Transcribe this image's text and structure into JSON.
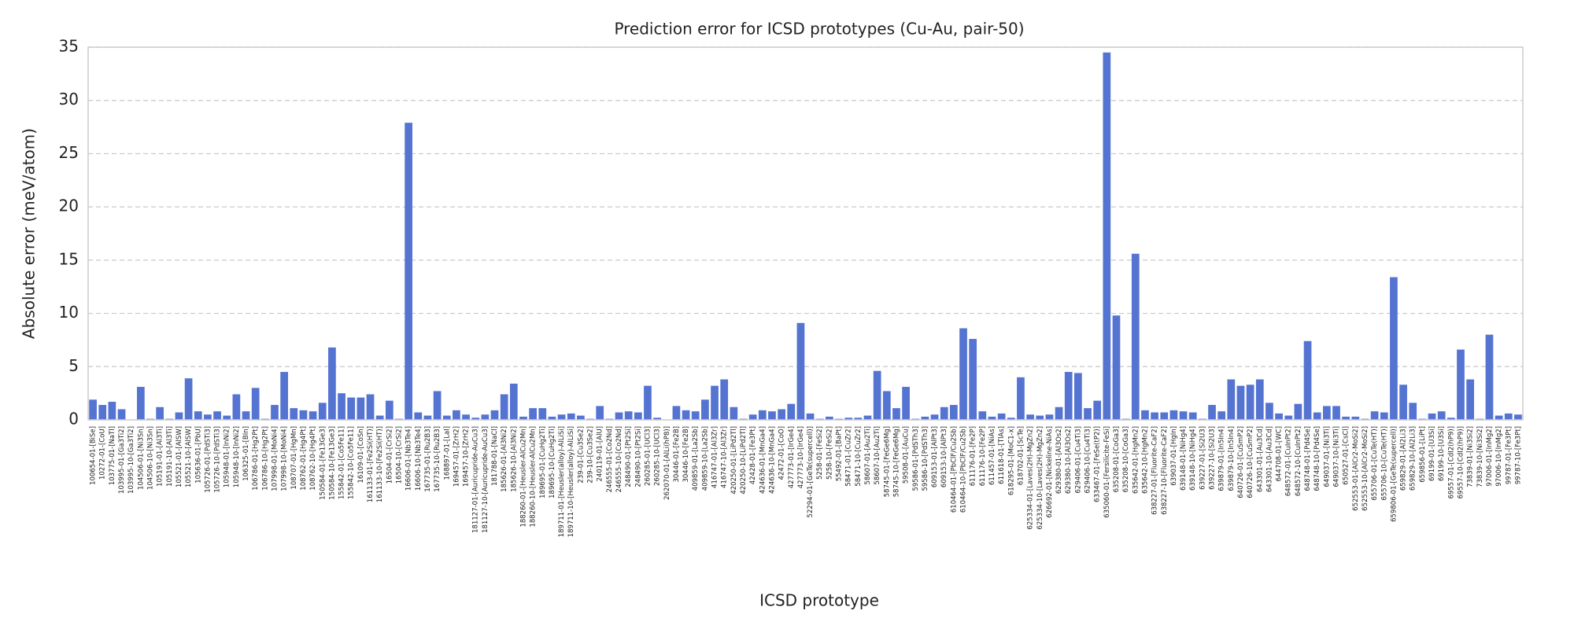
{
  "chart_data": {
    "type": "bar",
    "title": "Prediction error for ICSD prototypes (Cu-Au, pair-50)",
    "x_label": "ICSD prototype",
    "y_label": "Absolute error (meV/atom)",
    "color": "#5574d2",
    "grid": true,
    "ylim": [
      0,
      35
    ],
    "yticks": [
      0,
      5,
      10,
      15,
      20,
      25,
      30,
      35
    ],
    "categories": [
      "100654-01-[BiSe]",
      "10272-01-[CoU]",
      "103775-01-[NaTl]",
      "103995-01-[Ga3Ti2]",
      "103995-10-[Ga3Ti2]",
      "104506-01-[Ni3Sn]",
      "104506-10-[Ni3Sn]",
      "105191-01-[Al3Ti]",
      "105191-10-[Al3Ti]",
      "105521-01-[AlSW]",
      "105521-10-[AlSW]",
      "105636-01-[PbU]",
      "105726-01-[PdSTi3]",
      "105726-10-[PdSTi3]",
      "105948-01-[InNi2]",
      "105948-10-[InNi2]",
      "106325-01-[BIn]",
      "106786-01-[Hg2Pt]",
      "106786-10-[Hg2Pt]",
      "107998-01-[MoNi4]",
      "107998-10-[MoNi4]",
      "108707-01-[HgMn]",
      "108762-01-[Hg4Pt]",
      "108762-10-[Hg4Pt]",
      "150584-01-[Fe13Ge3]",
      "150584-10-[Fe13Ge3]",
      "155842-01-[Co5Fe11]",
      "155842-10-[Co5Fe11]",
      "16109-01-[CoSn]",
      "161133-01-[Fe2Si(HT)]",
      "161133-10-[Fe2Si(HT)]",
      "16504-01-[CrSi2]",
      "16504-10-[CrSi2]",
      "16606-01-[Nb3Te4]",
      "16606-10-[Nb3Te4]",
      "167735-01-[Ru2B3]",
      "167735-10-[Ru2B3]",
      "168897-01-[LaI]",
      "169457-01-[ZrH2]",
      "169457-10-[ZrH2]",
      "181127-01-[Auricupride-AuCu3]",
      "181127-10-[Auricupride-AuCu3]",
      "181788-01-[NaCl]",
      "185626-01-[Al3Ni2]",
      "185626-10-[Al3Ni2]",
      "188260-01-[Heusler-AlCu2Mn]",
      "188260-10-[Heusler-AlCu2Mn]",
      "189695-01-[CuHg2Ti]",
      "189695-10-[CuHg2Ti]",
      "189711-01-[Heusler(alloy)-AlLiSi]",
      "189711-10-[Heusler(alloy)-AlLiSi]",
      "239-01-[Cu3Se2]",
      "239-10-[Cu3Se2]",
      "240119-01-[AlU]",
      "246555-01-[Co2Nd]",
      "246555-10-[Co2Nd]",
      "248490-01-[Pt2Si]",
      "248490-10-[Pt2Si]",
      "260285-01-[UCl3]",
      "260285-10-[UCl3]",
      "262070-01-[AlLi(hP8)]",
      "30446-01-[Fe2B]",
      "30446-10-[Fe2B]",
      "409859-01-[La2Sb]",
      "409859-10-[La2Sb]",
      "416747-01-[Al3Zr]",
      "416747-10-[Al3Zr]",
      "420250-01-[LiPd2Tl]",
      "420250-10-[LiPd2Tl]",
      "42428-01-[Fe3Pt]",
      "424636-01-[MnGa4]",
      "424636-10-[MnGa4]",
      "42472-01-[CoO]",
      "427773-01-[IrGe4]",
      "427773-10-[IrGe4]",
      "52294-01-[GeTe(supercell)]",
      "5258-01-[FeSi2]",
      "5258-10-[FeSi2]",
      "55492-01-[BaPt]",
      "58471-01-[CuZr2]",
      "58471-10-[CuZr2]",
      "58607-01-[Au2Ti]",
      "58607-10-[Au2Ti]",
      "58745-01-[FeGe6Mg]",
      "58745-10-[FeGe6Mg]",
      "59508-01-[AuCu]",
      "59586-01-[PdSTh3]",
      "59586-10-[PdSTh3]",
      "609153-01-[AlPt3]",
      "609153-10-[AlPt3]",
      "610464-01-[PbClF/Cu2Sb]",
      "610464-10-[PbClF/Cu2Sb]",
      "611176-01-[Fe2P]",
      "611176-10-[Fe2P]",
      "611457-01-[NiAs]",
      "611618-01-[TlAs]",
      "618295-01-[MoC1-x]",
      "618702-01-[ScTe]",
      "625334-01-[Laves(2H)-MgZn2]",
      "625334-10-[Laves(2H)-MgZn2]",
      "626692-01-[Nickeline-NiAs]",
      "629380-01-[Al3Os2]",
      "629380-10-[Al3Os2]",
      "629406-01-[Cu4Ti3]",
      "629406-10-[Cu4Ti3]",
      "633467-01-[FeSe(tP2)]",
      "635060-01-[Fersilicite-FeSi]",
      "635208-01-[CoGa3]",
      "635208-10-[CoGa3]",
      "635642-01-[HgMn2]",
      "635642-10-[HgMn2]",
      "638227-01-[Fluorite-CaF2]",
      "638227-10-[Fluorite-CaF2]",
      "639037-01-[HgIn]",
      "639148-01-[NiHg4]",
      "639148-10-[NiHg4]",
      "639227-01-[Si2U3]",
      "639227-10-[Si2U3]",
      "639879-01-[In5In4]",
      "639879-10-[In5In4]",
      "640726-01-[CuSmP2]",
      "640726-10-[CuSmP2]",
      "643301-01-[Au3Cd]",
      "643301-10-[Au3Cd]",
      "644708-01-[WC]",
      "648572-01-[CuInPt2]",
      "648572-10-[CuInPt2]",
      "648748-01-[Pd4Se]",
      "648748-10-[Pd4Se]",
      "649037-01-[Ni3Ti]",
      "649037-10-[Ni3Ti]",
      "650527-01-[CsCl]",
      "652553-01-[AlCr2-MoSi2]",
      "652553-10-[AlCr2-MoSi2]",
      "655706-01-[CuTe(HT)]",
      "655706-10-[CuTe(HT)]",
      "659806-01-[GeTe(supercell)]",
      "659829-01-[Al2Li3]",
      "659829-10-[Al2Li3]",
      "659856-01-[LiPt]",
      "69199-01-[U3Si]",
      "69199-10-[U3Si]",
      "69557-01-[CdI2(hP9)]",
      "69557-10-[CdI2(hP9)]",
      "73839-01-[Ni3Si2]",
      "73839-10-[Ni3Si2]",
      "97006-01-[InMg2]",
      "97006-10-[InMg2]",
      "99787-01-[Fe3Pt]",
      "99787-10-[Fe3Pt]"
    ],
    "values": [
      1.9,
      1.4,
      1.7,
      1.0,
      0.0,
      3.1,
      0.1,
      1.2,
      0.1,
      0.7,
      3.9,
      0.8,
      0.5,
      0.8,
      0.4,
      2.4,
      0.8,
      3.0,
      0.1,
      1.4,
      4.5,
      1.1,
      0.9,
      0.8,
      1.6,
      6.8,
      2.5,
      2.1,
      2.1,
      2.4,
      0.4,
      1.8,
      0.1,
      27.9,
      0.7,
      0.4,
      2.7,
      0.4,
      0.9,
      0.5,
      0.2,
      0.5,
      0.9,
      2.4,
      3.4,
      0.3,
      1.1,
      1.1,
      0.3,
      0.5,
      0.6,
      0.4,
      0.1,
      1.3,
      0.1,
      0.7,
      0.8,
      0.7,
      3.2,
      0.2,
      0.0,
      1.3,
      0.9,
      0.8,
      1.9,
      3.2,
      3.8,
      1.2,
      0.1,
      0.5,
      0.9,
      0.8,
      1.0,
      1.5,
      9.1,
      0.6,
      0.1,
      0.3,
      0.1,
      0.2,
      0.2,
      0.4,
      4.6,
      2.7,
      1.1,
      3.1,
      0.1,
      0.3,
      0.5,
      1.2,
      1.4,
      8.6,
      7.6,
      0.8,
      0.3,
      0.6,
      0.2,
      4.0,
      0.5,
      0.4,
      0.5,
      1.2,
      4.5,
      4.4,
      1.1,
      1.8,
      34.5,
      9.8,
      0.1,
      15.6,
      0.9,
      0.7,
      0.7,
      0.9,
      0.8,
      0.7,
      0.1,
      1.4,
      0.8,
      3.8,
      3.2,
      3.3,
      3.8,
      1.6,
      0.6,
      0.4,
      1.5,
      7.4,
      0.7,
      1.3,
      1.3,
      0.3,
      0.3,
      0.1,
      0.8,
      0.7,
      13.4,
      3.3,
      1.6,
      0.1,
      0.6,
      0.8,
      0.2,
      6.6,
      3.8,
      0.1,
      8.0,
      0.4,
      0.6,
      0.5
    ]
  }
}
